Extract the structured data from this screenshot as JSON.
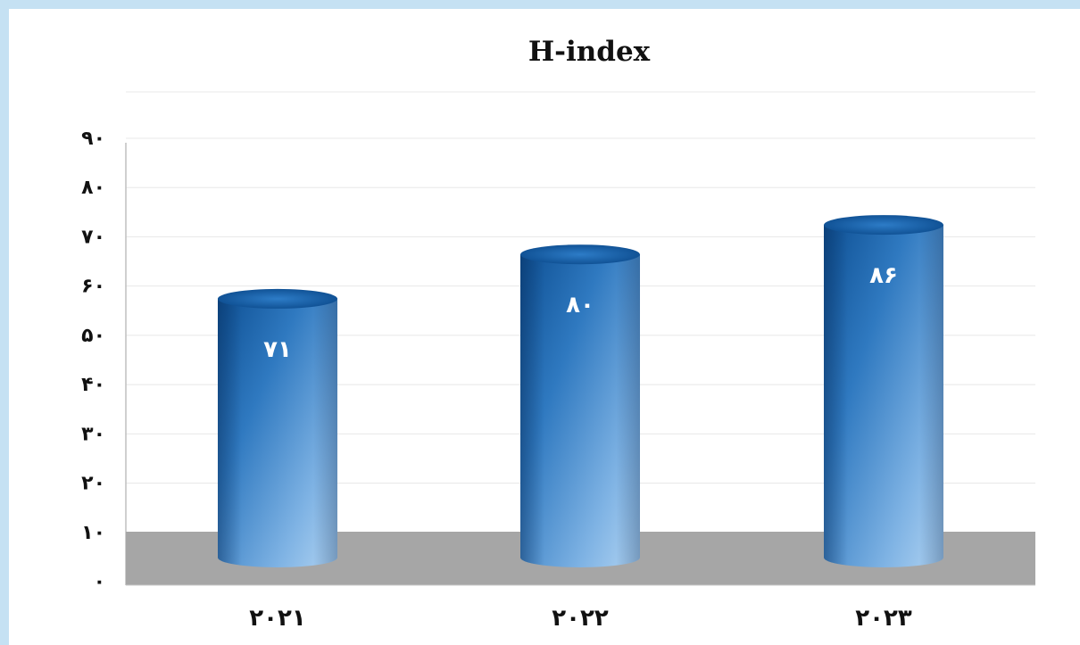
{
  "chart_data": {
    "type": "bar",
    "style": "3d-cylinder",
    "title": "H-index",
    "categories": [
      "۲۰۲۱",
      "۲۰۲۲",
      "۲۰۲۳"
    ],
    "values": [
      71,
      80,
      86
    ],
    "value_labels": [
      "۷۱",
      "۸۰",
      "۸۶"
    ],
    "y_ticks": [
      "۰",
      "۱۰",
      "۲۰",
      "۳۰",
      "۴۰",
      "۵۰",
      "۶۰",
      "۷۰",
      "۸۰",
      "۹۰"
    ],
    "ylim": [
      0,
      90
    ],
    "grid": true,
    "legend": "none",
    "colors": {
      "bar_dark": "#0d4f93",
      "bar_light": "#a8cdef",
      "floor": "#a6a6a6",
      "grid": "#e8e8e8",
      "page_bg": "#c5e1f3"
    }
  }
}
